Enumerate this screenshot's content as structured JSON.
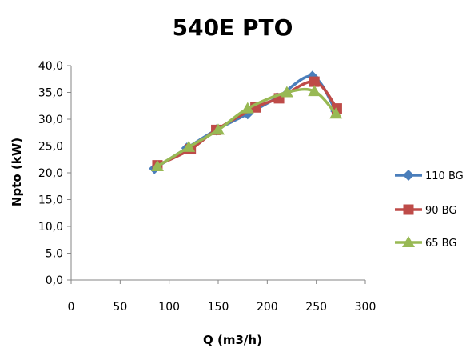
{
  "chart_data": {
    "type": "line",
    "title": "540E PTO",
    "xlabel": "Q (m3/h)",
    "ylabel": "Npto (kW)",
    "xlim": [
      0,
      300
    ],
    "ylim": [
      0,
      40
    ],
    "x_ticks": [
      "0",
      "50",
      "100",
      "150",
      "200",
      "250",
      "300"
    ],
    "y_ticks": [
      "0,0",
      "5,0",
      "10,0",
      "15,0",
      "20,0",
      "25,0",
      "30,0",
      "35,0",
      "40,0"
    ],
    "grid": false,
    "legend_position": "right",
    "series": [
      {
        "name": "110 BG",
        "color": "#4a7ebb",
        "marker": "diamond",
        "points": [
          [
            85,
            20.8
          ],
          [
            118,
            24.6
          ],
          [
            148,
            28.0
          ],
          [
            180,
            31.0
          ],
          [
            210,
            34.0
          ],
          [
            246,
            38.0
          ],
          [
            270,
            31.5
          ]
        ]
      },
      {
        "name": "90 BG",
        "color": "#be4b48",
        "marker": "square",
        "points": [
          [
            88,
            21.4
          ],
          [
            122,
            24.4
          ],
          [
            148,
            28.0
          ],
          [
            188,
            32.2
          ],
          [
            212,
            33.9
          ],
          [
            248,
            37.0
          ],
          [
            271,
            32.0
          ]
        ]
      },
      {
        "name": "65 BG",
        "color": "#98b954",
        "marker": "triangle",
        "points": [
          [
            88,
            21.2
          ],
          [
            120,
            24.8
          ],
          [
            150,
            28.0
          ],
          [
            180,
            32.0
          ],
          [
            220,
            35.0
          ],
          [
            248,
            35.2
          ],
          [
            270,
            31.0
          ]
        ]
      }
    ]
  }
}
